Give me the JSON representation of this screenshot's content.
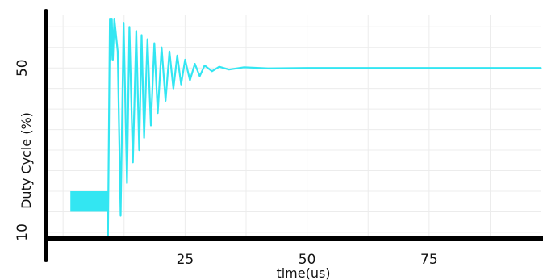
{
  "chart_data": {
    "type": "line",
    "title": "",
    "xlabel": "time(us)",
    "ylabel": "Duty Cycle (%)",
    "xlim": [
      -3,
      98
    ],
    "ylim": [
      9,
      63
    ],
    "x_ticks": [
      "25",
      "50",
      "75"
    ],
    "y_ticks": [
      "10",
      "50"
    ],
    "grid": true,
    "legend": "none",
    "series": [
      {
        "color": "#33e6f2",
        "segments": [
          {
            "kind": "band",
            "x": [
              1.5,
              9.2
            ],
            "y": [
              15,
              20
            ]
          },
          {
            "kind": "trace",
            "x": [
              9.2,
              9.6,
              9.8,
              10.0,
              10.2,
              10.5,
              11.2,
              11.8,
              12.4,
              13.1,
              13.6,
              14.3,
              15.0,
              15.6,
              16.1,
              16.6,
              17.3,
              18.0,
              18.7,
              19.4,
              20.2,
              21.0,
              21.8,
              22.6,
              23.4,
              24.2,
              25.0,
              26.0,
              27.0,
              28.0,
              29.0,
              30.5,
              32.0,
              34.0,
              37.0,
              42.0,
              50.0,
              60.0,
              75.0,
              98.0
            ],
            "y": [
              9,
              62,
              52,
              62,
              52,
              62,
              54,
              14,
              61,
              22,
              60,
              27,
              59,
              30,
              58,
              33,
              57,
              36,
              56,
              39,
              55,
              42,
              54,
              45,
              53,
              46,
              52,
              47,
              51,
              48,
              50.6,
              49.2,
              50.3,
              49.6,
              50.15,
              49.9,
              50,
              50,
              50,
              50
            ]
          }
        ]
      }
    ]
  }
}
